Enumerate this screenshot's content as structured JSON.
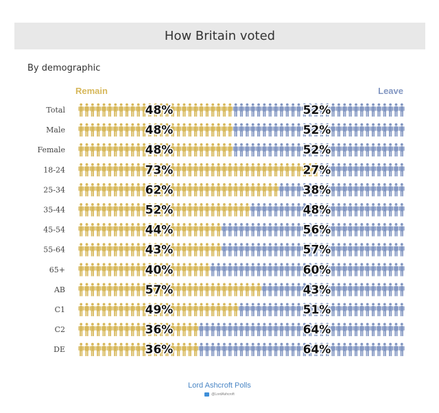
{
  "header": {
    "title": "How Britain voted"
  },
  "subtitle": "By demographic",
  "colors": {
    "remain": "#d7b85b",
    "leave": "#8397c2",
    "footer": "#4a86c5"
  },
  "footer": {
    "source": "Lord Ashcroft Polls",
    "handle": "@LordAshcroft"
  },
  "chart_data": {
    "type": "bar",
    "stacked": true,
    "orientation": "horizontal",
    "title": "How Britain voted",
    "subtitle": "By demographic",
    "series": [
      {
        "name": "Remain",
        "values": [
          48,
          48,
          48,
          73,
          62,
          52,
          44,
          43,
          40,
          57,
          49,
          36,
          36
        ]
      },
      {
        "name": "Leave",
        "values": [
          52,
          52,
          52,
          27,
          38,
          48,
          56,
          57,
          60,
          43,
          51,
          64,
          64
        ]
      }
    ],
    "categories": [
      "Total",
      "Male",
      "Female",
      "18-24",
      "25-34",
      "35-44",
      "45-54",
      "55-64",
      "65+",
      "AB",
      "C1",
      "C2",
      "DE"
    ],
    "labels": {
      "remain": [
        "48%",
        "48%",
        "48%",
        "73%",
        "62%",
        "52%",
        "44%",
        "43%",
        "40%",
        "57%",
        "49%",
        "36%",
        "36%"
      ],
      "leave": [
        "52%",
        "52%",
        "52%",
        "27%",
        "38%",
        "48%",
        "56%",
        "57%",
        "60%",
        "43%",
        "51%",
        "64%",
        "64%"
      ]
    },
    "legend": "top"
  }
}
